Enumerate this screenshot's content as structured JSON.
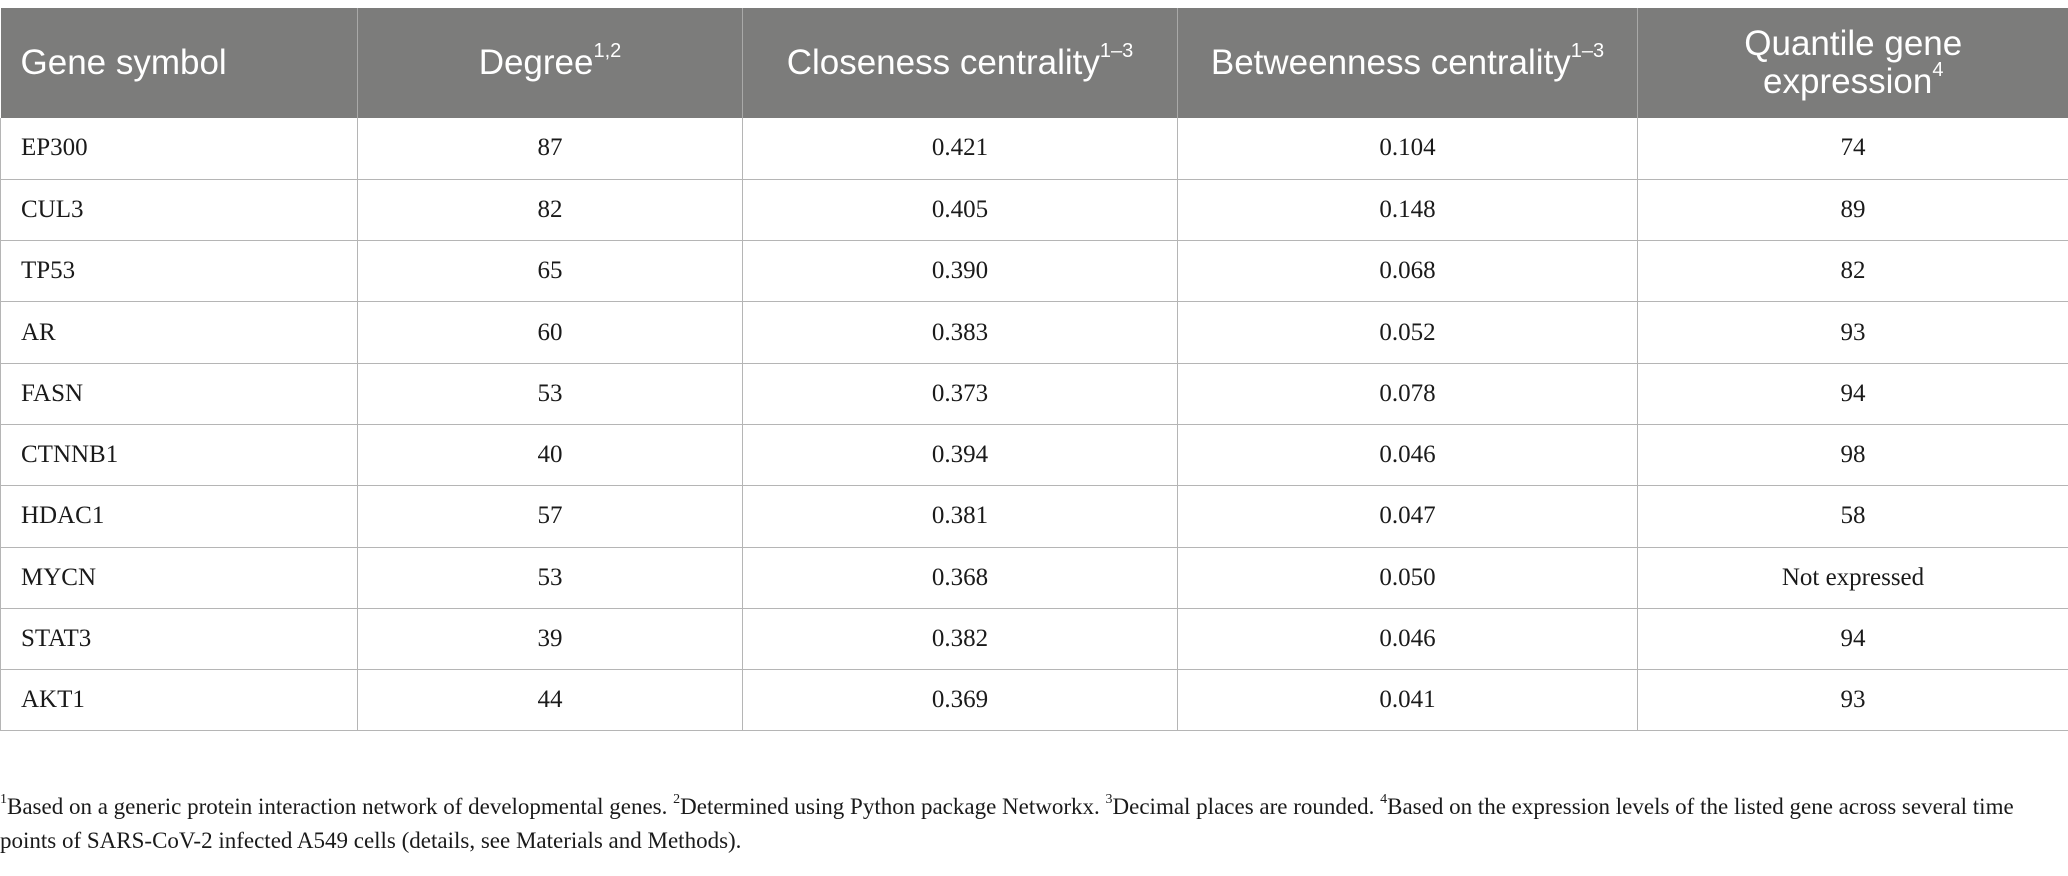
{
  "table": {
    "headers": [
      {
        "label": "Gene symbol",
        "sup": ""
      },
      {
        "label": "Degree",
        "sup": "1,2"
      },
      {
        "label": "Closeness centrality",
        "sup": "1–3"
      },
      {
        "label": "Betweenness centrality",
        "sup": "1–3"
      },
      {
        "label": "Quantile gene expression",
        "sup": "4"
      }
    ],
    "rows": [
      [
        "EP300",
        "87",
        "0.421",
        "0.104",
        "74"
      ],
      [
        "CUL3",
        "82",
        "0.405",
        "0.148",
        "89"
      ],
      [
        "TP53",
        "65",
        "0.390",
        "0.068",
        "82"
      ],
      [
        "AR",
        "60",
        "0.383",
        "0.052",
        "93"
      ],
      [
        "FASN",
        "53",
        "0.373",
        "0.078",
        "94"
      ],
      [
        "CTNNB1",
        "40",
        "0.394",
        "0.046",
        "98"
      ],
      [
        "HDAC1",
        "57",
        "0.381",
        "0.047",
        "58"
      ],
      [
        "MYCN",
        "53",
        "0.368",
        "0.050",
        "Not expressed"
      ],
      [
        "STAT3",
        "39",
        "0.382",
        "0.046",
        "94"
      ],
      [
        "AKT1",
        "44",
        "0.369",
        "0.041",
        "93"
      ]
    ]
  },
  "footnotes": [
    {
      "mark": "1",
      "text": "Based on a generic protein interaction network of developmental genes. "
    },
    {
      "mark": "2",
      "text": "Determined using Python package Networkx. "
    },
    {
      "mark": "3",
      "text": "Decimal places are rounded. "
    },
    {
      "mark": "4",
      "text": "Based on the expression levels of the listed gene across several time points of SARS-CoV-2 infected A549 cells (details, see Materials and Methods)."
    }
  ],
  "colors": {
    "header_bg": "#7c7c7b",
    "header_text": "#ffffff",
    "grid": "#b5b5b5"
  }
}
